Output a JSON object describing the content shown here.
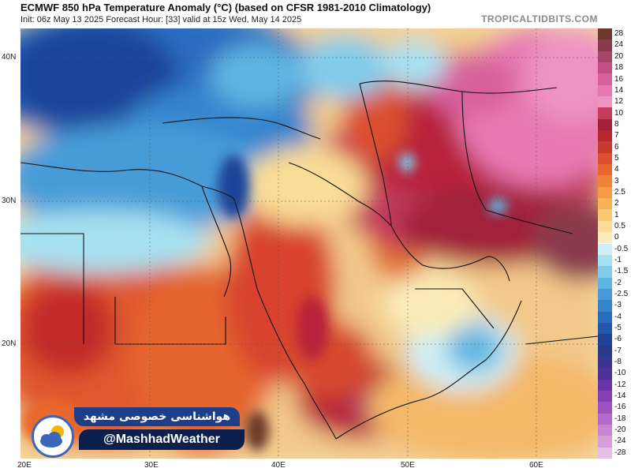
{
  "header": {
    "title": "ECMWF 850 hPa Temperature Anomaly (°C) (based on CFSR 1981-2010 Climatology)",
    "subtitle": "Init: 06z May 13 2025   Forecast Hour: [33]   valid at 15z Wed, May 14 2025",
    "brand": "TROPICALTIDBITS.COM"
  },
  "axes": {
    "lat_labels": [
      "40N",
      "30N",
      "20N"
    ],
    "lon_labels": [
      "20E",
      "30E",
      "40E",
      "50E",
      "60E"
    ]
  },
  "colorbar": {
    "labels": [
      "28",
      "24",
      "20",
      "18",
      "16",
      "14",
      "12",
      "10",
      "8",
      "7",
      "6",
      "5",
      "4",
      "3",
      "2.5",
      "2",
      "1",
      "0.5",
      "0",
      "-0.5",
      "-1",
      "-1.5",
      "-2",
      "-2.5",
      "-3",
      "-4",
      "-5",
      "-6",
      "-7",
      "-8",
      "-10",
      "-12",
      "-14",
      "-16",
      "-18",
      "-20",
      "-24",
      "-28"
    ],
    "colors": [
      "#6b3a2a",
      "#8a3b4e",
      "#a8436a",
      "#c24f86",
      "#d8609c",
      "#e679b3",
      "#ee93c4",
      "#c23a5c",
      "#a1203a",
      "#b52a2f",
      "#c83a2e",
      "#dc4f2e",
      "#e8672f",
      "#ef8236",
      "#f39a44",
      "#f6b257",
      "#f8c874",
      "#f9dc95",
      "#fbecb8",
      "#cdeff6",
      "#a6e1f1",
      "#81cceb",
      "#5fb5e2",
      "#479cd8",
      "#3585cd",
      "#2a6dbf",
      "#2457ac",
      "#1f4499",
      "#2a3a8a",
      "#3b3490",
      "#4e3198",
      "#6a34a8",
      "#8440b5",
      "#9c52c0",
      "#b36ac9",
      "#c684d2",
      "#d7a0db",
      "#e6bfe6"
    ]
  },
  "watermark": {
    "persian_text": "هواشناسی خصوصی مشهد",
    "handle": "@MashhadWeather",
    "logo_icon": "cloud-sun-icon"
  }
}
